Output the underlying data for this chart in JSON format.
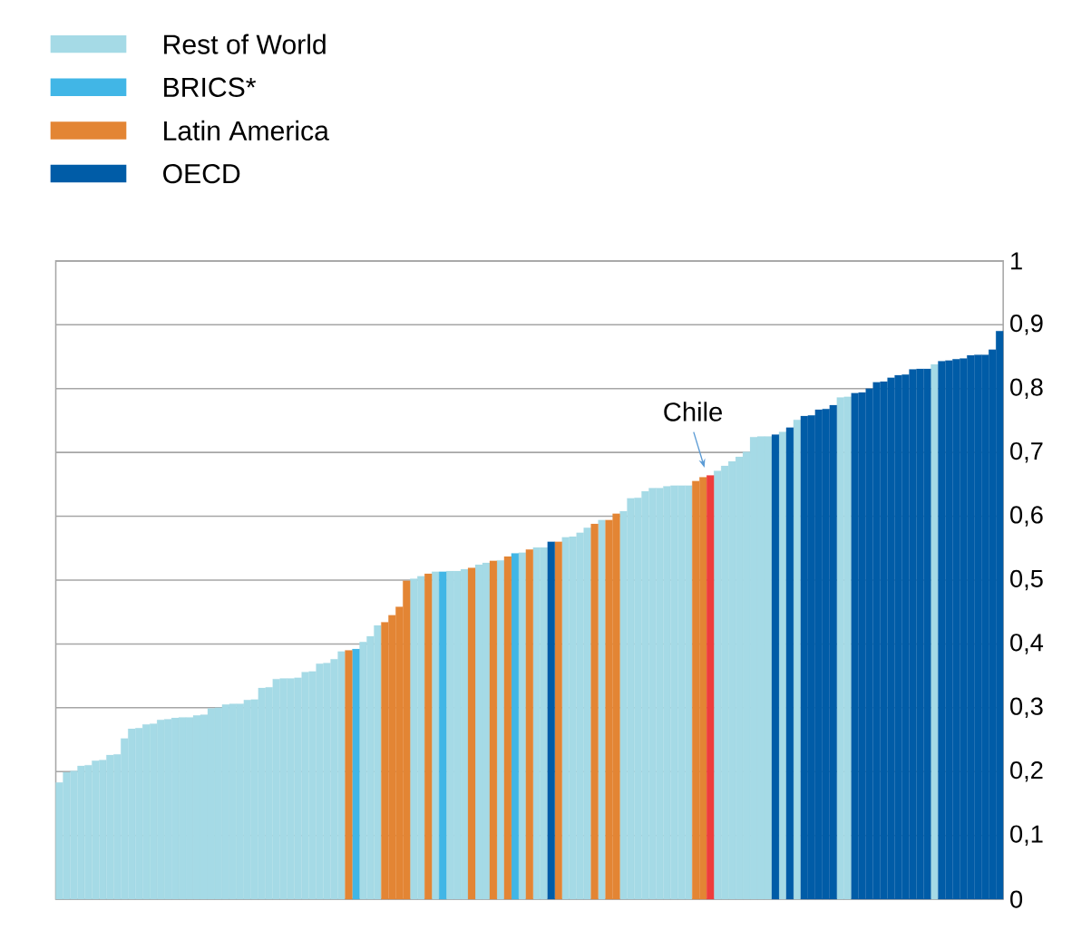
{
  "chart_data": {
    "type": "bar",
    "stacked": true,
    "grid": "y",
    "legend": "top left",
    "categories": [
      null,
      null,
      null,
      null,
      null,
      null,
      null,
      null,
      null,
      null,
      null,
      null,
      null,
      null,
      null,
      null,
      null,
      null,
      null,
      null,
      null,
      null,
      null,
      null,
      null,
      null,
      null,
      null,
      null,
      null,
      null,
      null,
      null,
      null,
      null,
      null,
      null,
      null,
      null,
      null,
      null,
      null,
      null,
      null,
      null,
      null,
      null,
      null,
      null,
      null,
      null,
      null,
      null,
      null,
      null,
      null,
      null,
      null,
      null,
      null,
      null,
      null,
      null,
      null,
      null,
      null,
      null,
      null,
      null,
      null,
      null,
      null,
      null,
      null,
      null,
      null,
      null,
      null,
      null,
      null,
      null,
      null,
      null,
      null,
      null,
      null,
      null,
      null,
      null,
      null,
      null,
      null,
      null,
      null,
      null,
      null,
      null,
      null,
      null,
      null,
      null,
      null,
      null,
      null,
      null,
      null,
      null,
      null,
      null,
      null,
      null,
      null,
      null,
      null,
      null,
      null,
      null,
      null,
      null,
      null,
      null,
      null,
      null,
      null,
      null,
      null,
      null,
      null,
      null,
      null,
      null
    ],
    "ylim": [
      0,
      1
    ],
    "yticks": [
      0,
      {
        "value": 0.1,
        "label": "0,1"
      },
      {
        "value": 0.2,
        "label": "0,2"
      },
      {
        "value": 0.3,
        "label": "0,3"
      },
      {
        "value": 0.4,
        "label": "0,4"
      },
      {
        "value": 0.5,
        "label": "0,5"
      },
      {
        "value": 0.6,
        "label": "0,6"
      },
      {
        "value": 0.7,
        "label": "0,7"
      },
      {
        "value": 0.8,
        "label": "0,8"
      },
      {
        "value": 0.9,
        "label": "0,9"
      },
      1
    ],
    "annotations": [
      {
        "text": "Chile",
        "y": 0.664
      }
    ],
    "series": [
      {
        "name": "Rest of World",
        "color": "#a5dae6",
        "values": [
          0.183,
          0.199,
          0.201,
          0.209,
          0.21,
          0.217,
          0.218,
          0.226,
          0.227,
          0.252,
          0.267,
          0.268,
          0.274,
          0.275,
          0.281,
          0.282,
          0.284,
          0.285,
          0.285,
          0.288,
          0.289,
          0.299,
          0.3,
          0.305,
          0.306,
          0.306,
          0.312,
          0.313,
          0.331,
          0.332,
          0.345,
          0.346,
          0.346,
          0.347,
          0.356,
          0.357,
          0.369,
          0.37,
          0.376,
          0.388,
          null,
          null,
          0.403,
          0.412,
          0.429,
          null,
          null,
          null,
          null,
          0.502,
          0.506,
          null,
          0.513,
          null,
          0.514,
          0.514,
          0.517,
          null,
          0.524,
          0.527,
          null,
          0.531,
          null,
          null,
          0.543,
          null,
          0.551,
          0.551,
          null,
          null,
          0.567,
          0.568,
          0.574,
          0.582,
          null,
          0.594,
          null,
          null,
          0.608,
          0.628,
          0.629,
          0.639,
          0.644,
          0.644,
          0.647,
          0.648,
          0.648,
          0.648,
          null,
          null,
          null,
          0.671,
          0.679,
          0.686,
          0.693,
          0.701,
          0.724,
          0.725,
          0.725,
          null,
          0.732,
          null,
          0.751,
          null,
          null,
          null,
          null,
          null,
          0.786,
          0.787,
          null,
          null,
          null,
          null,
          null,
          null,
          null,
          null,
          null,
          null,
          null,
          0.838,
          null,
          null,
          null,
          null,
          null,
          null,
          null,
          null,
          null
        ]
      },
      {
        "name": "BRICS*",
        "color": "#41b6e6",
        "values": [
          null,
          null,
          null,
          null,
          null,
          null,
          null,
          null,
          null,
          null,
          null,
          null,
          null,
          null,
          null,
          null,
          null,
          null,
          null,
          null,
          null,
          null,
          null,
          null,
          null,
          null,
          null,
          null,
          null,
          null,
          null,
          null,
          null,
          null,
          null,
          null,
          null,
          null,
          null,
          null,
          null,
          0.392,
          null,
          null,
          null,
          null,
          null,
          null,
          null,
          null,
          null,
          null,
          null,
          0.513,
          null,
          null,
          null,
          null,
          null,
          null,
          null,
          null,
          null,
          0.542,
          null,
          null,
          null,
          null,
          null,
          null,
          null,
          null,
          null,
          null,
          null,
          null,
          null,
          null,
          null,
          null,
          null,
          null,
          null,
          null,
          null,
          null,
          null,
          null,
          null,
          null,
          null,
          null,
          null,
          null,
          null,
          null,
          null,
          null,
          null,
          null,
          null,
          null,
          null,
          null,
          null,
          null,
          null,
          null,
          null,
          null,
          null,
          null,
          null,
          null,
          null,
          null,
          null,
          null,
          null,
          null,
          null,
          null,
          null,
          null,
          null,
          null,
          null,
          null,
          null,
          null,
          null
        ]
      },
      {
        "name": "Latin America",
        "color": "#e38534",
        "values": [
          null,
          null,
          null,
          null,
          null,
          null,
          null,
          null,
          null,
          null,
          null,
          null,
          null,
          null,
          null,
          null,
          null,
          null,
          null,
          null,
          null,
          null,
          null,
          null,
          null,
          null,
          null,
          null,
          null,
          null,
          null,
          null,
          null,
          null,
          null,
          null,
          null,
          null,
          null,
          null,
          0.39,
          null,
          null,
          null,
          null,
          0.434,
          0.445,
          0.458,
          0.499,
          null,
          null,
          0.51,
          null,
          null,
          null,
          null,
          null,
          0.519,
          null,
          null,
          0.53,
          null,
          0.537,
          null,
          null,
          0.548,
          null,
          null,
          null,
          0.56,
          null,
          null,
          null,
          null,
          0.588,
          null,
          0.594,
          0.604,
          null,
          null,
          null,
          null,
          null,
          null,
          null,
          null,
          null,
          null,
          0.655,
          0.661,
          0.664,
          null,
          null,
          null,
          null,
          null,
          null,
          null,
          null,
          null,
          null,
          null,
          null,
          null,
          null,
          null,
          null,
          null,
          null,
          null,
          null,
          null,
          null,
          null,
          null,
          null,
          null,
          null,
          null,
          null,
          null,
          null,
          null,
          null,
          null,
          null,
          null,
          null,
          null,
          null,
          null
        ],
        "colors": [
          null,
          null,
          null,
          null,
          null,
          null,
          null,
          null,
          null,
          null,
          null,
          null,
          null,
          null,
          null,
          null,
          null,
          null,
          null,
          null,
          null,
          null,
          null,
          null,
          null,
          null,
          null,
          null,
          null,
          null,
          null,
          null,
          null,
          null,
          null,
          null,
          null,
          null,
          null,
          null,
          "#e38534",
          null,
          null,
          null,
          null,
          "#e38534",
          "#e38534",
          "#e38534",
          "#e38534",
          null,
          null,
          "#e38534",
          null,
          null,
          null,
          null,
          null,
          "#e38534",
          null,
          null,
          "#e38534",
          null,
          "#e38534",
          null,
          null,
          "#e38534",
          null,
          null,
          null,
          "#e38534",
          null,
          null,
          null,
          null,
          "#e38534",
          null,
          "#e38534",
          "#e38534",
          null,
          null,
          null,
          null,
          null,
          null,
          null,
          null,
          null,
          null,
          "#e38534",
          "#e38534",
          "#ee3d3c",
          null,
          null,
          null,
          null,
          null,
          null,
          null,
          null,
          null,
          null,
          null,
          null,
          null,
          null,
          null,
          null,
          null,
          null,
          null,
          null,
          null,
          null,
          null,
          null,
          null,
          null,
          null,
          null,
          null,
          null,
          null,
          null,
          null,
          null,
          null,
          null,
          null,
          null,
          null,
          null
        ]
      },
      {
        "name": "OECD",
        "color": "#005ca7",
        "values": [
          null,
          null,
          null,
          null,
          null,
          null,
          null,
          null,
          null,
          null,
          null,
          null,
          null,
          null,
          null,
          null,
          null,
          null,
          null,
          null,
          null,
          null,
          null,
          null,
          null,
          null,
          null,
          null,
          null,
          null,
          null,
          null,
          null,
          null,
          null,
          null,
          null,
          null,
          null,
          null,
          null,
          null,
          null,
          null,
          null,
          null,
          null,
          null,
          null,
          null,
          null,
          null,
          null,
          null,
          null,
          null,
          null,
          null,
          null,
          null,
          null,
          null,
          null,
          null,
          null,
          null,
          null,
          null,
          0.56,
          null,
          null,
          null,
          null,
          null,
          null,
          null,
          null,
          null,
          null,
          null,
          null,
          null,
          null,
          null,
          null,
          null,
          null,
          null,
          null,
          null,
          null,
          null,
          null,
          null,
          null,
          null,
          null,
          null,
          null,
          0.728,
          null,
          0.739,
          null,
          0.757,
          0.758,
          0.767,
          0.768,
          0.774,
          null,
          null,
          0.793,
          0.794,
          0.8,
          0.81,
          0.811,
          0.817,
          0.821,
          0.822,
          0.83,
          0.831,
          0.831,
          null,
          0.843,
          0.844,
          0.846,
          0.847,
          0.852,
          0.853,
          0.853,
          0.861,
          0.89
        ]
      }
    ]
  }
}
